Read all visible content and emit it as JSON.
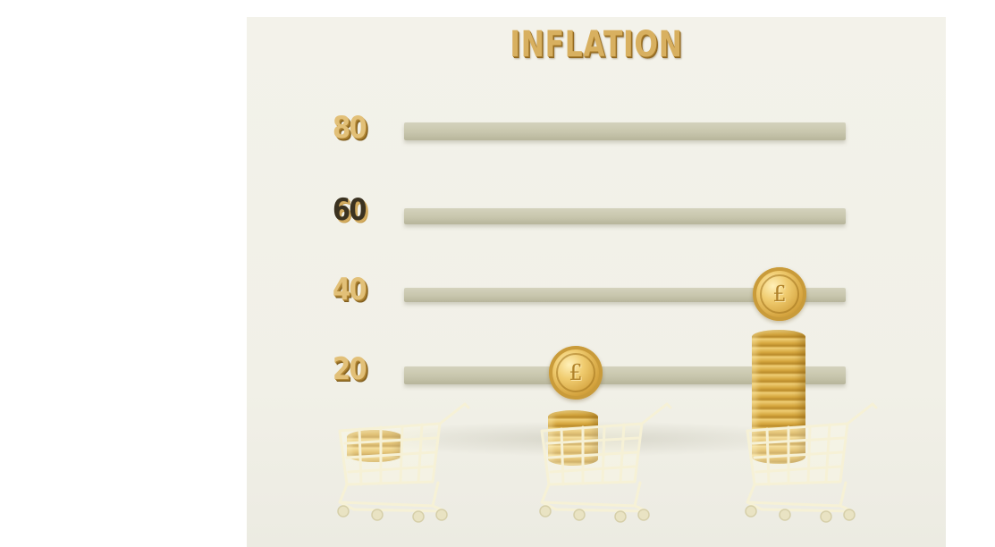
{
  "title": "INFLATION",
  "levels": [
    "80",
    "60",
    "40",
    "20"
  ],
  "coin_symbol": "£",
  "icons": [
    "shopping-cart-icon",
    "pound-coin-icon"
  ],
  "colors": {
    "background": "#f2f1e9",
    "shelf": "#ccc9b1",
    "gold": "#d9ac48",
    "cart": "#f4f0d2"
  }
}
